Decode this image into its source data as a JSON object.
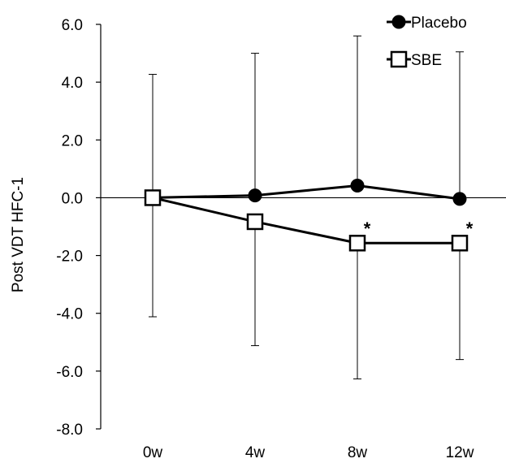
{
  "chart_data": {
    "type": "line",
    "categories": [
      "0w",
      "4w",
      "8w",
      "12w"
    ],
    "ylabel": "Post VDT HFC-1",
    "ylim": [
      -8.0,
      6.0
    ],
    "yticks": [
      "6.0",
      "4.0",
      "2.0",
      "0.0",
      "-2.0",
      "-4.0",
      "-6.0",
      "-8.0"
    ],
    "grid": false,
    "legend_position": "top-right",
    "series": [
      {
        "name": "Placebo",
        "marker": "filled-circle",
        "color": "#000000",
        "values": [
          0.0,
          0.08,
          0.42,
          -0.04
        ],
        "error_upper": [
          null,
          5.0,
          5.6,
          5.05
        ],
        "error_lower": [
          null,
          null,
          null,
          null
        ]
      },
      {
        "name": "SBE",
        "marker": "open-square",
        "color": "#000000",
        "values": [
          0.0,
          -0.83,
          -1.57,
          -1.57
        ],
        "error_upper": [
          4.27,
          null,
          null,
          null
        ],
        "error_lower": [
          -4.12,
          -5.12,
          -6.27,
          -5.6
        ]
      }
    ],
    "annotations": [
      {
        "text": "*",
        "category": "8w",
        "y": -0.95
      },
      {
        "text": "*",
        "category": "12w",
        "y": -0.95
      }
    ]
  }
}
